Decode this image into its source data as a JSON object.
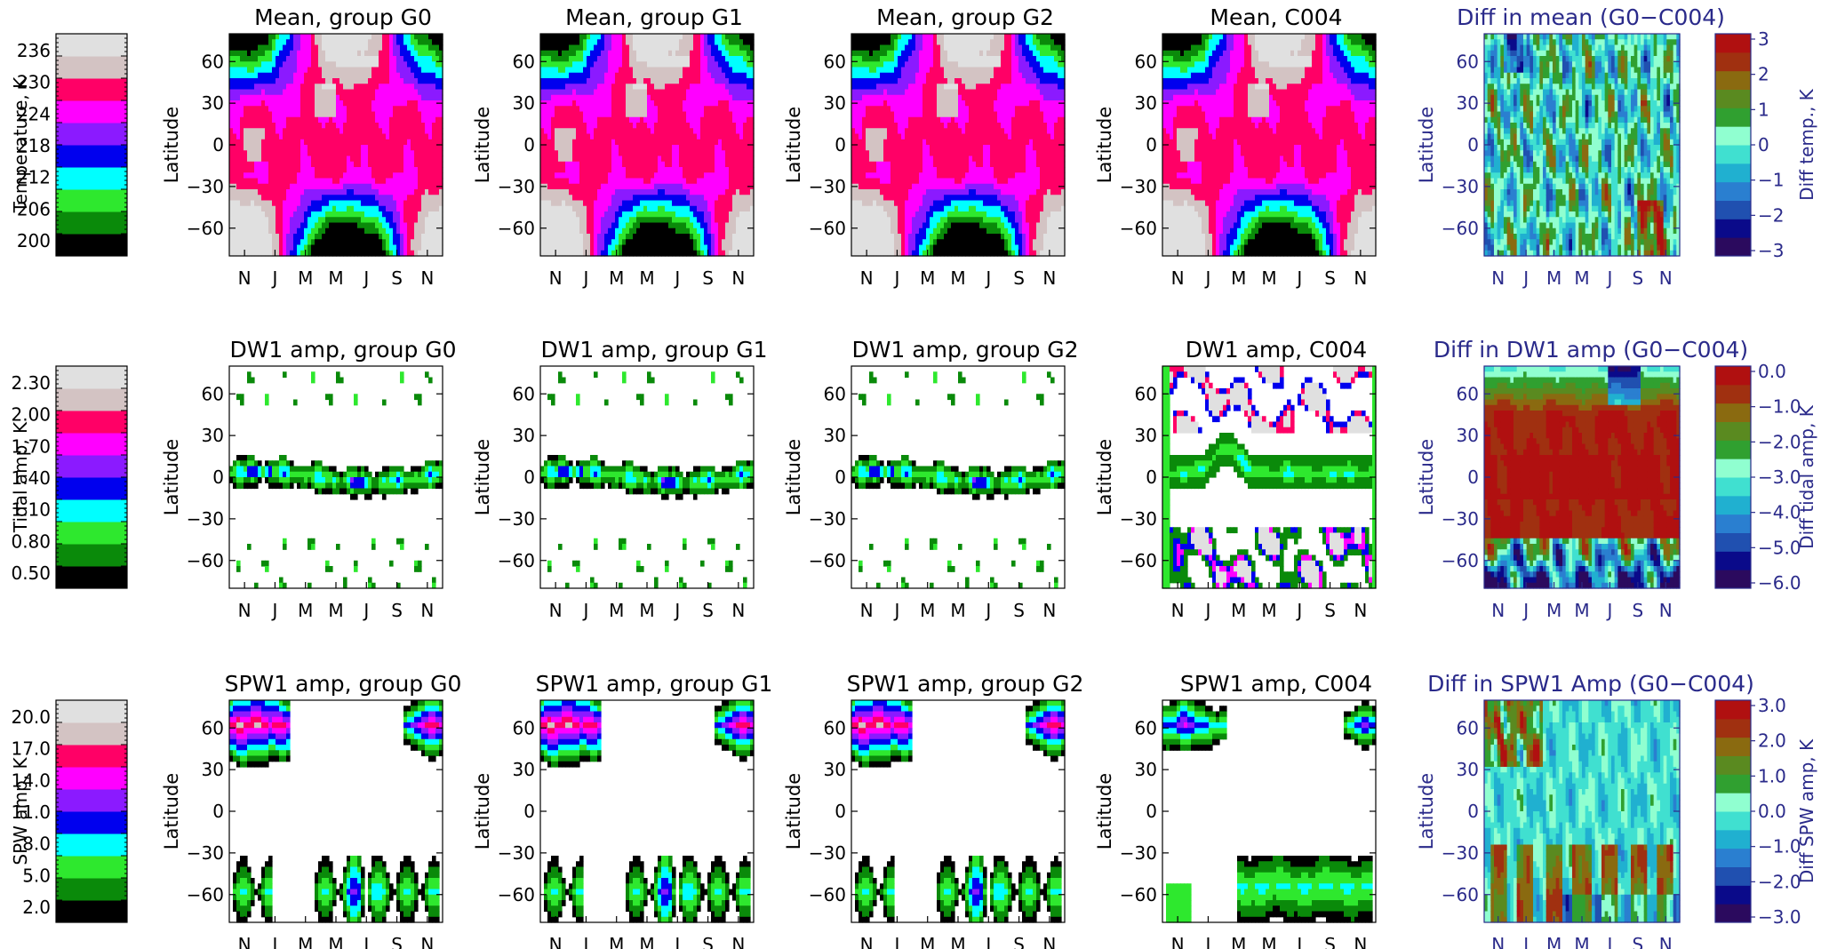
{
  "rows": [
    {
      "id": "temperature",
      "bar": {
        "label": "Temperature, K",
        "ticks": [
          "200",
          "206",
          "212",
          "218",
          "224",
          "230",
          "236"
        ],
        "colors": [
          "#000000",
          "#0a8a0a",
          "#2ee82e",
          "#00ffff",
          "#0000ee",
          "#8b1aff",
          "#ff00ff",
          "#ff0066",
          "#d3c3c3",
          "#e0e0e0"
        ]
      },
      "panels": [
        {
          "title": "Mean,  group G0",
          "kind": "mean"
        },
        {
          "title": "Mean,  group G1",
          "kind": "mean"
        },
        {
          "title": "Mean,  group G2",
          "kind": "mean"
        },
        {
          "title": "Mean, C004",
          "kind": "mean"
        }
      ],
      "diff": {
        "title": "Diff in mean (G0−C004)",
        "kind": "diff_mean",
        "cbar_label": "Diff temp., K",
        "cbar_ticks": [
          "3",
          "2",
          "1",
          "0",
          "−1",
          "−2",
          "−3"
        ]
      }
    },
    {
      "id": "tidal",
      "bar": {
        "label": "Tidal amp, K",
        "ticks": [
          "0.50",
          "0.80",
          "1.10",
          "1.40",
          "1.70",
          "2.00",
          "2.30"
        ],
        "colors": [
          "#000000",
          "#0a8a0a",
          "#2ee82e",
          "#00ffff",
          "#0000ee",
          "#8b1aff",
          "#ff00ff",
          "#ff0066",
          "#d3c3c3",
          "#e0e0e0"
        ]
      },
      "panels": [
        {
          "title": "DW1 amp,  group G0",
          "kind": "dw1"
        },
        {
          "title": "DW1 amp,  group G1",
          "kind": "dw1"
        },
        {
          "title": "DW1 amp,  group G2",
          "kind": "dw1"
        },
        {
          "title": "DW1 amp,  C004",
          "kind": "dw1c"
        }
      ],
      "diff": {
        "title": "Diff in DW1 amp (G0−C004)",
        "kind": "diff_dw1",
        "cbar_label": "Diff tidal amp, K",
        "cbar_ticks": [
          "0.0",
          "−1.0",
          "−2.0",
          "−3.0",
          "−4.0",
          "−5.0",
          "−6.0"
        ]
      }
    },
    {
      "id": "spw",
      "bar": {
        "label": "SPW amp, K",
        "ticks": [
          "2.0",
          "5.0",
          "8.0",
          "11.0",
          "14.0",
          "17.0",
          "20.0"
        ],
        "colors": [
          "#000000",
          "#0a8a0a",
          "#2ee82e",
          "#00ffff",
          "#0000ee",
          "#8b1aff",
          "#ff00ff",
          "#ff0066",
          "#d3c3c3",
          "#e0e0e0"
        ]
      },
      "panels": [
        {
          "title": "SPW1 amp,  group G0",
          "kind": "spw"
        },
        {
          "title": "SPW1 amp,  group G1",
          "kind": "spw"
        },
        {
          "title": "SPW1 amp,  group G2",
          "kind": "spw"
        },
        {
          "title": "SPW1 amp,  C004",
          "kind": "spwc"
        }
      ],
      "diff": {
        "title": "Diff in SPW1 Amp (G0−C004)",
        "kind": "diff_spw",
        "cbar_label": "Diff SPW amp, K",
        "cbar_ticks": [
          "3.0",
          "2.0",
          "1.0",
          "0.0",
          "−1.0",
          "−2.0",
          "−3.0"
        ]
      }
    }
  ],
  "axes": {
    "ylabel": "Latitude",
    "yticks": [
      "60",
      "30",
      "0",
      "−30",
      "−60"
    ],
    "ylim": [
      -80,
      80
    ],
    "xticks": [
      "N",
      "J",
      "M",
      "M",
      "J",
      "S",
      "N"
    ]
  },
  "diff_colors": [
    "#2b0a5e",
    "#0a0a8a",
    "#2050b0",
    "#2a7fd0",
    "#20b0d0",
    "#40e0d0",
    "#90ffd0",
    "#30a030",
    "#5a8a20",
    "#8a6a10",
    "#a03010",
    "#b01010"
  ],
  "chart_data": [
    {
      "type": "heatmap",
      "title": "Mean,  group G0",
      "ylabel": "Latitude",
      "ylim": [
        -80,
        80
      ],
      "xticks": [
        "N",
        "J",
        "M",
        "M",
        "J",
        "S",
        "N"
      ],
      "value_ticks": [
        200,
        206,
        212,
        218,
        224,
        230,
        236
      ]
    },
    {
      "type": "heatmap",
      "title": "Diff in mean (G0−C004)",
      "ylabel": "Latitude",
      "ylim": [
        -80,
        80
      ],
      "value_ticks": [
        3,
        2,
        1,
        0,
        -1,
        -2,
        -3
      ]
    },
    {
      "type": "heatmap",
      "title": "DW1 amp,  group G0",
      "ylabel": "Latitude",
      "ylim": [
        -80,
        80
      ],
      "value_ticks": [
        0.5,
        0.8,
        1.1,
        1.4,
        1.7,
        2.0,
        2.3
      ]
    },
    {
      "type": "heatmap",
      "title": "Diff in DW1 amp (G0−C004)",
      "ylabel": "Latitude",
      "ylim": [
        -80,
        80
      ],
      "value_ticks": [
        0.0,
        -1.0,
        -2.0,
        -3.0,
        -4.0,
        -5.0,
        -6.0
      ]
    },
    {
      "type": "heatmap",
      "title": "SPW1 amp,  group G0",
      "ylabel": "Latitude",
      "ylim": [
        -80,
        80
      ],
      "value_ticks": [
        2.0,
        5.0,
        8.0,
        11.0,
        14.0,
        17.0,
        20.0
      ]
    },
    {
      "type": "heatmap",
      "title": "Diff in SPW1 Amp (G0−C004)",
      "ylabel": "Latitude",
      "ylim": [
        -80,
        80
      ],
      "value_ticks": [
        3.0,
        2.0,
        1.0,
        0.0,
        -1.0,
        -2.0,
        -3.0
      ]
    }
  ]
}
